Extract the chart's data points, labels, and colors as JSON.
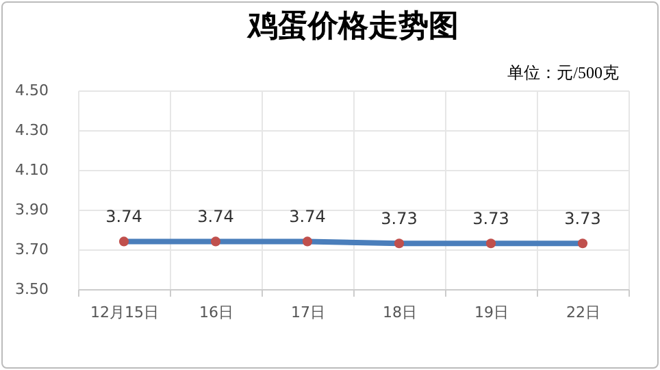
{
  "chart_data": {
    "type": "line",
    "title": "鸡蛋价格走势图",
    "annotations": [
      "单位：元/500克"
    ],
    "categories": [
      "12月15日",
      "16日",
      "17日",
      "18日",
      "19日",
      "22日"
    ],
    "series": [
      {
        "color": "#4a7ebb",
        "colors": [
          "#c0504d",
          "#c0504d",
          "#c0504d",
          "#c0504d",
          "#c0504d",
          "#c0504d"
        ],
        "values": [
          3.74,
          3.74,
          3.74,
          3.73,
          3.73,
          3.73
        ]
      }
    ],
    "ylim": [
      3.5,
      4.5
    ],
    "yticks": [
      {
        "value": 3.5,
        "label": "3.50"
      },
      {
        "value": 3.7,
        "label": "3.70"
      },
      {
        "value": 3.9,
        "label": "3.90"
      },
      {
        "value": 4.1,
        "label": "4.10"
      },
      {
        "value": 4.3,
        "label": "4.30"
      },
      {
        "value": 4.5,
        "label": "4.50"
      }
    ],
    "grid": true,
    "marker": "circle",
    "line_style": "solid",
    "data_labels": true
  }
}
